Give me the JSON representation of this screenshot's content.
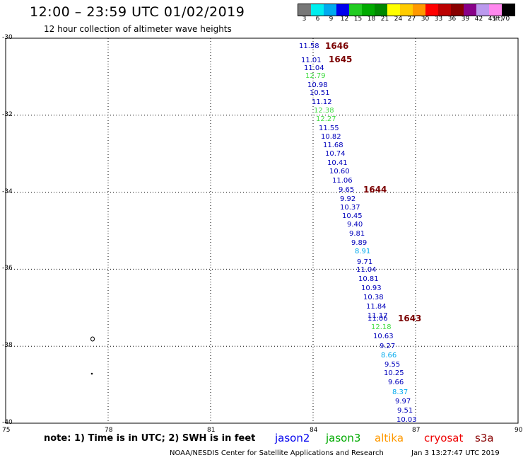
{
  "title": "12:00 – 23:59 UTC 01/02/2019",
  "subtitle": "12 hour collection of altimeter wave heights",
  "colorbar": {
    "labels": [
      "3",
      "6",
      "9",
      "12",
      "15",
      "18",
      "21",
      "24",
      "27",
      "30",
      "33",
      "36",
      "39",
      "42",
      "45",
      "70"
    ],
    "colors": [
      "#777777",
      "#00eeee",
      "#00aaee",
      "#0000ee",
      "#22cc22",
      "#00aa00",
      "#008800",
      "#ffff00",
      "#ffcc00",
      "#ff9900",
      "#ff0000",
      "#bb0000",
      "#880000",
      "#880088",
      "#bb99ee",
      "#ff88ee",
      "#000000"
    ],
    "unit": "(ft)"
  },
  "lat_labels": [
    "-30",
    "-32",
    "-34",
    "-36",
    "-38",
    "-40"
  ],
  "lon_labels": [
    "75",
    "78",
    "81",
    "84",
    "87",
    "90"
  ],
  "map": {
    "lon_range": [
      75,
      90
    ],
    "lat_range": [
      -40,
      -30
    ],
    "grid_lons": [
      78,
      81,
      84,
      87
    ],
    "grid_lats": [
      -32,
      -34,
      -36,
      -38
    ]
  },
  "swh_readings": [
    {
      "value": "11.58",
      "color": "#0000bb"
    },
    {
      "value": "11.01",
      "color": "#0000bb"
    },
    {
      "value": "11.04",
      "color": "#0000bb"
    },
    {
      "value": "12.79",
      "color": "#44dd44"
    },
    {
      "value": "10.98",
      "color": "#0000bb"
    },
    {
      "value": "10.51",
      "color": "#0000bb"
    },
    {
      "value": "11.12",
      "color": "#0000bb"
    },
    {
      "value": "12.38",
      "color": "#44dd44"
    },
    {
      "value": "12.27",
      "color": "#44dd44"
    },
    {
      "value": "11.55",
      "color": "#0000bb"
    },
    {
      "value": "10.82",
      "color": "#0000bb"
    },
    {
      "value": "11.68",
      "color": "#0000bb"
    },
    {
      "value": "10.74",
      "color": "#0000bb"
    },
    {
      "value": "10.41",
      "color": "#0000bb"
    },
    {
      "value": "10.60",
      "color": "#0000bb"
    },
    {
      "value": "11.06",
      "color": "#0000bb"
    },
    {
      "value": "9.65",
      "color": "#0000bb"
    },
    {
      "value": "9.92",
      "color": "#0000bb"
    },
    {
      "value": "10.37",
      "color": "#0000bb"
    },
    {
      "value": "10.45",
      "color": "#0000bb"
    },
    {
      "value": "9.40",
      "color": "#0000bb"
    },
    {
      "value": "9.81",
      "color": "#0000bb"
    },
    {
      "value": "9.89",
      "color": "#0000bb"
    },
    {
      "value": "8.91",
      "color": "#00aaee"
    },
    {
      "value": "9.71",
      "color": "#0000bb"
    },
    {
      "value": "11.04",
      "color": "#0000bb"
    },
    {
      "value": "10.81",
      "color": "#0000bb"
    },
    {
      "value": "10.93",
      "color": "#0000bb"
    },
    {
      "value": "10.38",
      "color": "#0000bb"
    },
    {
      "value": "11.84",
      "color": "#0000bb"
    },
    {
      "value": "11.17",
      "color": "#0000bb"
    },
    {
      "value": "11.06",
      "color": "#0000bb"
    },
    {
      "value": "12.18",
      "color": "#44dd44"
    },
    {
      "value": "10.63",
      "color": "#0000bb"
    },
    {
      "value": "9.27",
      "color": "#0000bb"
    },
    {
      "value": "8.66",
      "color": "#00aaee"
    },
    {
      "value": "9.55",
      "color": "#0000bb"
    },
    {
      "value": "10.25",
      "color": "#0000bb"
    },
    {
      "value": "9.66",
      "color": "#0000bb"
    },
    {
      "value": "8.37",
      "color": "#00aaee"
    },
    {
      "value": "9.97",
      "color": "#0000bb"
    },
    {
      "value": "9.51",
      "color": "#0000bb"
    },
    {
      "value": "10.03",
      "color": "#0000bb"
    }
  ],
  "time_labels": [
    "1646",
    "1645",
    "1644",
    "1643"
  ],
  "note": "note: 1) Time is in UTC; 2) SWH is in feet",
  "legend": [
    {
      "name": "jason2",
      "color": "#0000ee"
    },
    {
      "name": "jason3",
      "color": "#00aa00"
    },
    {
      "name": "altika",
      "color": "#ff9900"
    },
    {
      "name": "cryosat",
      "color": "#ee0000"
    },
    {
      "name": "s3a",
      "color": "#880000"
    }
  ],
  "footer": "NOAA/NESDIS Center for Satellite Applications and Research",
  "footer_time": "Jan  3 13:27:47 UTC 2019"
}
